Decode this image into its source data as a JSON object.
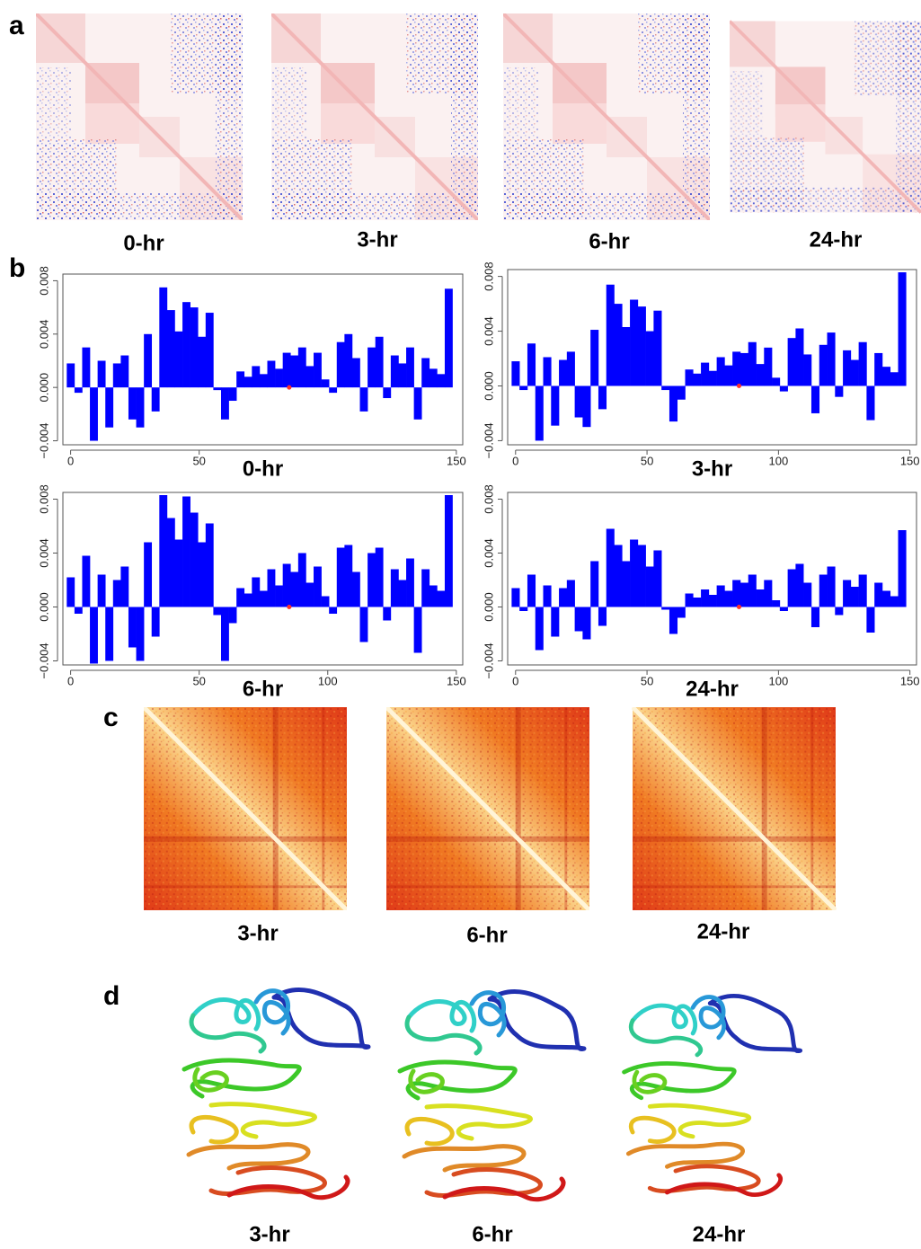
{
  "panel_labels": [
    "a",
    "b",
    "c",
    "d"
  ],
  "panel_a": {
    "titles": [
      "0-hr",
      "3-hr",
      "6-hr",
      "24-hr"
    ]
  },
  "chart_data": [
    {
      "type": "bar",
      "title": "0-hr",
      "color": "#0000ff",
      "x": [
        0,
        3,
        6,
        9,
        12,
        15,
        18,
        21,
        24,
        27,
        30,
        33,
        36,
        39,
        42,
        45,
        48,
        51,
        54,
        57,
        60,
        63,
        66,
        69,
        72,
        75,
        78,
        81,
        84,
        87,
        90,
        93,
        96,
        99,
        102,
        105,
        108,
        111,
        114,
        117,
        120,
        123,
        126,
        129,
        132,
        135,
        138,
        141,
        144,
        147
      ],
      "values": [
        0.0018,
        -0.0004,
        0.003,
        -0.004,
        0.002,
        -0.003,
        0.0018,
        0.0024,
        -0.0024,
        -0.003,
        0.004,
        -0.0018,
        0.0075,
        0.0058,
        0.0042,
        0.0064,
        0.006,
        0.0038,
        0.0056,
        -0.0002,
        -0.0024,
        -0.001,
        0.0012,
        0.0008,
        0.0016,
        0.001,
        0.002,
        0.0014,
        0.0026,
        0.0024,
        0.003,
        0.0016,
        0.0026,
        0.0006,
        -0.0004,
        0.0034,
        0.004,
        0.0022,
        -0.0018,
        0.003,
        0.0038,
        -0.0008,
        0.0024,
        0.0018,
        0.003,
        -0.0024,
        0.0022,
        0.0014,
        0.001,
        0.0074
      ],
      "highlight": {
        "x": 85,
        "y": 0,
        "color": "#ff3030"
      },
      "xlim": [
        -3,
        152.5
      ],
      "ylim": [
        -0.0043,
        0.0085
      ],
      "xticks": [
        0,
        50,
        150
      ],
      "yticks": [
        {
          "value": -0.004,
          "label": "−0.004"
        },
        {
          "value": 0,
          "label": "0.000"
        },
        0.004,
        0.008
      ]
    },
    {
      "type": "bar",
      "title": "3-hr",
      "color": "#0000ff",
      "x": [
        0,
        3,
        6,
        9,
        12,
        15,
        18,
        21,
        24,
        27,
        30,
        33,
        36,
        39,
        42,
        45,
        48,
        51,
        54,
        57,
        60,
        63,
        66,
        69,
        72,
        75,
        78,
        81,
        84,
        87,
        90,
        93,
        96,
        99,
        102,
        105,
        108,
        111,
        114,
        117,
        120,
        123,
        126,
        129,
        132,
        135,
        138,
        141,
        144,
        147
      ],
      "values": [
        0.0018,
        -0.0003,
        0.0031,
        -0.004,
        0.0021,
        -0.0029,
        0.0019,
        0.0025,
        -0.0023,
        -0.003,
        0.0041,
        -0.0017,
        0.0074,
        0.006,
        0.0043,
        0.0063,
        0.0058,
        0.004,
        0.0055,
        -0.0003,
        -0.0026,
        -0.001,
        0.0012,
        0.0009,
        0.0017,
        0.0011,
        0.0021,
        0.0015,
        0.0025,
        0.0024,
        0.0032,
        0.0016,
        0.0028,
        0.0006,
        -0.0004,
        0.0035,
        0.0042,
        0.0023,
        -0.002,
        0.003,
        0.0039,
        -0.0008,
        0.0026,
        0.0019,
        0.0032,
        -0.0025,
        0.0024,
        0.0014,
        0.001,
        0.0083
      ],
      "highlight": {
        "x": 85,
        "y": 0,
        "color": "#ff3030"
      },
      "xlim": [
        -3,
        152.5
      ],
      "ylim": [
        -0.0043,
        0.0085
      ],
      "xticks": [
        0,
        50,
        100,
        150
      ],
      "yticks": [
        {
          "value": -0.004,
          "label": "−0.004"
        },
        {
          "value": 0,
          "label": "0.000"
        },
        0.004,
        0.008
      ]
    },
    {
      "type": "bar",
      "title": "6-hr",
      "color": "#0000ff",
      "x": [
        0,
        3,
        6,
        9,
        12,
        15,
        18,
        21,
        24,
        27,
        30,
        33,
        36,
        39,
        42,
        45,
        48,
        51,
        54,
        57,
        60,
        63,
        66,
        69,
        72,
        75,
        78,
        81,
        84,
        87,
        90,
        93,
        96,
        99,
        102,
        105,
        108,
        111,
        114,
        117,
        120,
        123,
        126,
        129,
        132,
        135,
        138,
        141,
        144,
        147
      ],
      "values": [
        0.0022,
        -0.0005,
        0.0038,
        -0.0042,
        0.0024,
        -0.004,
        0.002,
        0.003,
        -0.003,
        -0.004,
        0.0048,
        -0.0022,
        0.0083,
        0.0066,
        0.005,
        0.0082,
        0.007,
        0.0048,
        0.0062,
        -0.0006,
        -0.004,
        -0.0012,
        0.0014,
        0.001,
        0.0022,
        0.0012,
        0.0028,
        0.0016,
        0.0032,
        0.0026,
        0.004,
        0.0018,
        0.003,
        0.0008,
        -0.0005,
        0.0044,
        0.0046,
        0.0026,
        -0.0026,
        0.004,
        0.0044,
        -0.001,
        0.0028,
        0.002,
        0.0036,
        -0.0034,
        0.0028,
        0.0016,
        0.0012,
        0.0083
      ],
      "highlight": {
        "x": 85,
        "y": 0,
        "color": "#ff3030"
      },
      "xlim": [
        -3,
        152.5
      ],
      "ylim": [
        -0.0043,
        0.0085
      ],
      "xticks": [
        0,
        50,
        100,
        150
      ],
      "yticks": [
        {
          "value": -0.004,
          "label": "−0.004"
        },
        {
          "value": 0,
          "label": "0.000"
        },
        0.004,
        0.008
      ]
    },
    {
      "type": "bar",
      "title": "24-hr",
      "color": "#0000ff",
      "x": [
        0,
        3,
        6,
        9,
        12,
        15,
        18,
        21,
        24,
        27,
        30,
        33,
        36,
        39,
        42,
        45,
        48,
        51,
        54,
        57,
        60,
        63,
        66,
        69,
        72,
        75,
        78,
        81,
        84,
        87,
        90,
        93,
        96,
        99,
        102,
        105,
        108,
        111,
        114,
        117,
        120,
        123,
        126,
        129,
        132,
        135,
        138,
        141,
        144,
        147
      ],
      "values": [
        0.0014,
        -0.0003,
        0.0024,
        -0.0032,
        0.0016,
        -0.0022,
        0.0014,
        0.002,
        -0.0018,
        -0.0024,
        0.0034,
        -0.0014,
        0.0058,
        0.0046,
        0.0034,
        0.005,
        0.0046,
        0.003,
        0.0042,
        -0.0002,
        -0.002,
        -0.0008,
        0.001,
        0.0007,
        0.0013,
        0.0009,
        0.0016,
        0.0012,
        0.002,
        0.0018,
        0.0024,
        0.0013,
        0.002,
        0.0005,
        -0.0003,
        0.0028,
        0.0032,
        0.0018,
        -0.0015,
        0.0024,
        0.003,
        -0.0006,
        0.002,
        0.0015,
        0.0024,
        -0.0019,
        0.0018,
        0.0012,
        0.0008,
        0.0057
      ],
      "highlight": {
        "x": 85,
        "y": 0,
        "color": "#ff3030"
      },
      "xlim": [
        -3,
        152.5
      ],
      "ylim": [
        -0.0043,
        0.0085
      ],
      "xticks": [
        0,
        50,
        100,
        150
      ],
      "yticks": [
        {
          "value": -0.004,
          "label": "−0.004"
        },
        {
          "value": 0,
          "label": "0.000"
        },
        0.004,
        0.008
      ]
    }
  ],
  "panel_c": {
    "titles": [
      "3-hr",
      "6-hr",
      "24-hr"
    ]
  },
  "panel_d": {
    "titles": [
      "3-hr",
      "6-hr",
      "24-hr"
    ]
  }
}
